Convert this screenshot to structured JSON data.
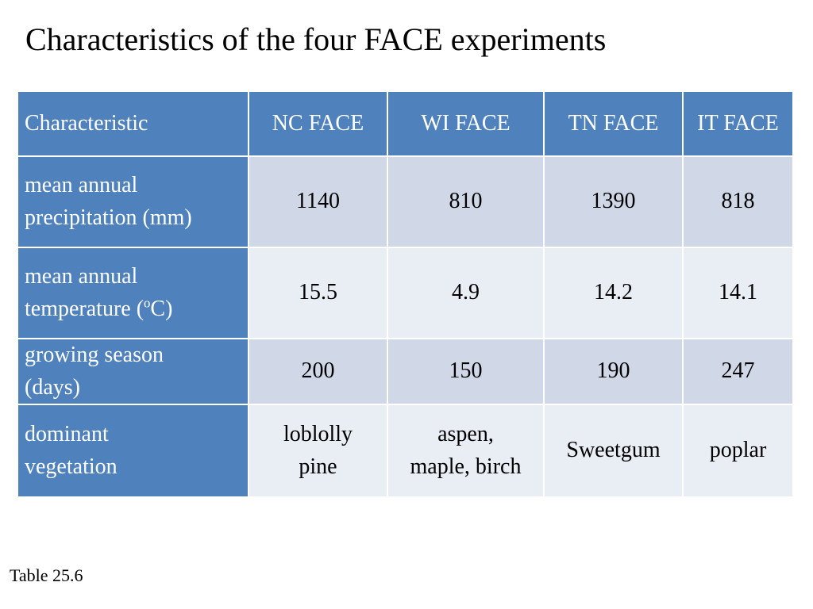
{
  "slide": {
    "title": "Characteristics of the four FACE experiments",
    "caption": "Table 25.6"
  },
  "table": {
    "headers": [
      "Characteristic",
      "NC FACE",
      "WI FACE",
      "TN FACE",
      "IT FACE"
    ],
    "rows": [
      {
        "label_lines": [
          "mean annual",
          "precipitation (mm)"
        ],
        "values": [
          "1140",
          "810",
          "1390",
          "818"
        ]
      },
      {
        "label_lines": [
          "mean annual",
          "temperature (",
          "o",
          "C)"
        ],
        "values": [
          "15.5",
          "4.9",
          "14.2",
          "14.1"
        ]
      },
      {
        "label_lines": [
          "growing season",
          "(days)"
        ],
        "values": [
          "200",
          "150",
          "190",
          "247"
        ]
      },
      {
        "label_lines": [
          "dominant",
          "vegetation"
        ],
        "values_lines": [
          [
            "loblolly",
            "pine"
          ],
          [
            "aspen,",
            "maple, birch"
          ],
          [
            "Sweetgum"
          ],
          [
            "poplar"
          ]
        ]
      }
    ]
  },
  "colors": {
    "header_fill": "#4f81bd",
    "row_fill_dark": "#d0d8e8",
    "row_fill_light": "#e9edf4"
  }
}
